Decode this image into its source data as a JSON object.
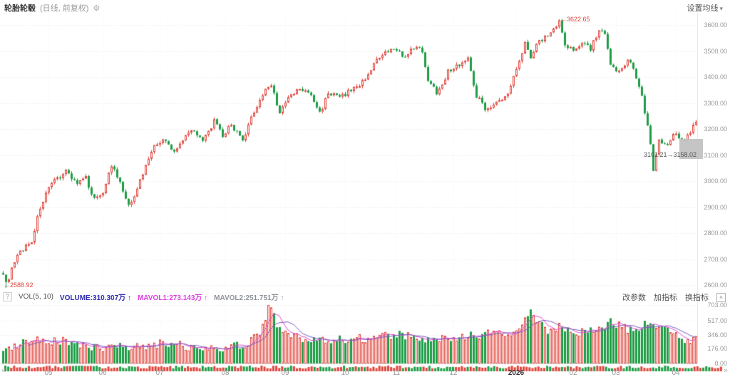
{
  "header": {
    "symbol": "轮胎轮毂",
    "mode": "(日线, 前复权)",
    "gear_icon": "⚙",
    "settings_label": "设置均线",
    "caret_icon": "▾"
  },
  "indicator_bar": {
    "help_icon": "?",
    "name": "VOL(5, 10)",
    "volume_label": "VOLUME:310.307万",
    "mavol1_label": "MAVOL1:273.143万",
    "mavol2_label": "MAVOL2:251.751万",
    "arrow_up": "↑",
    "buttons": [
      "改参数",
      "加指标",
      "换指标"
    ],
    "close_icon": "×"
  },
  "navigator": {
    "left_icon": "«",
    "right_icon": "»"
  },
  "colors": {
    "up": "#e0443c",
    "up_fill": "#fdf1f0",
    "down": "#1f9d46",
    "grid": "#e8e8e8",
    "grid_v": "#f0f0f0",
    "axis_text": "#999999",
    "mavol1_line": "#e14ad7",
    "mavol2_line": "#7d5bbe",
    "boundary": "#e3e3e3",
    "zero_line": "#dddddd"
  },
  "chart_data": {
    "type": "candlestick+volume",
    "title": "轮胎轮毂",
    "candle_count": 244,
    "price_axis": {
      "ticks": [
        "3600.00",
        "3500.00",
        "3400.00",
        "3300.00",
        "3200.00",
        "3100.00",
        "3000.00",
        "2900.00",
        "2800.00",
        "2700.00",
        "2600.00"
      ],
      "ylim": [
        2560,
        3640
      ]
    },
    "volume_axis": {
      "ticks": [
        "703.00",
        "517.00",
        "346.00",
        "176.00",
        "0.00"
      ],
      "unit": "万",
      "ylim": [
        0,
        703
      ]
    },
    "x_labels": [
      {
        "label": "05",
        "i": 16
      },
      {
        "label": "06",
        "i": 35
      },
      {
        "label": "07",
        "i": 55
      },
      {
        "label": "08",
        "i": 78
      },
      {
        "label": "09",
        "i": 99
      },
      {
        "label": "10",
        "i": 120
      },
      {
        "label": "11",
        "i": 138
      },
      {
        "label": "12",
        "i": 158
      },
      {
        "label": "2026",
        "i": 180
      },
      {
        "label": "02",
        "i": 200
      },
      {
        "label": "03",
        "i": 215
      },
      {
        "label": "04",
        "i": 236
      }
    ],
    "close_anchors": [
      [
        0,
        2650
      ],
      [
        1,
        2602
      ],
      [
        3,
        2660
      ],
      [
        6,
        2730
      ],
      [
        10,
        2770
      ],
      [
        13,
        2900
      ],
      [
        15,
        2950
      ],
      [
        18,
        3000
      ],
      [
        22,
        3040
      ],
      [
        26,
        2990
      ],
      [
        29,
        3010
      ],
      [
        32,
        2930
      ],
      [
        35,
        2960
      ],
      [
        38,
        3060
      ],
      [
        41,
        2990
      ],
      [
        44,
        2900
      ],
      [
        48,
        3000
      ],
      [
        52,
        3120
      ],
      [
        56,
        3160
      ],
      [
        60,
        3110
      ],
      [
        64,
        3180
      ],
      [
        67,
        3200
      ],
      [
        70,
        3150
      ],
      [
        74,
        3230
      ],
      [
        77,
        3170
      ],
      [
        80,
        3220
      ],
      [
        84,
        3150
      ],
      [
        88,
        3270
      ],
      [
        92,
        3350
      ],
      [
        94,
        3373
      ],
      [
        97,
        3260
      ],
      [
        100,
        3320
      ],
      [
        104,
        3355
      ],
      [
        108,
        3330
      ],
      [
        111,
        3260
      ],
      [
        114,
        3340
      ],
      [
        118,
        3320
      ],
      [
        122,
        3350
      ],
      [
        126,
        3380
      ],
      [
        130,
        3450
      ],
      [
        134,
        3490
      ],
      [
        138,
        3510
      ],
      [
        141,
        3470
      ],
      [
        144,
        3515
      ],
      [
        147,
        3500
      ],
      [
        149,
        3390
      ],
      [
        152,
        3340
      ],
      [
        156,
        3420
      ],
      [
        160,
        3450
      ],
      [
        163,
        3470
      ],
      [
        166,
        3330
      ],
      [
        169,
        3280
      ],
      [
        173,
        3300
      ],
      [
        177,
        3330
      ],
      [
        180,
        3440
      ],
      [
        183,
        3530
      ],
      [
        185,
        3480
      ],
      [
        188,
        3540
      ],
      [
        191,
        3560
      ],
      [
        194,
        3600
      ],
      [
        195,
        3615
      ],
      [
        197,
        3520
      ],
      [
        200,
        3500
      ],
      [
        203,
        3540
      ],
      [
        206,
        3510
      ],
      [
        209,
        3580
      ],
      [
        211,
        3560
      ],
      [
        213,
        3440
      ],
      [
        216,
        3420
      ],
      [
        219,
        3470
      ],
      [
        221,
        3430
      ],
      [
        224,
        3330
      ],
      [
        227,
        3150
      ],
      [
        228,
        3045
      ],
      [
        230,
        3160
      ],
      [
        233,
        3140
      ],
      [
        236,
        3190
      ],
      [
        238,
        3150
      ],
      [
        240,
        3180
      ],
      [
        243,
        3225
      ]
    ],
    "volume_anchors": [
      [
        0,
        180
      ],
      [
        5,
        220
      ],
      [
        13,
        300
      ],
      [
        22,
        260
      ],
      [
        32,
        180
      ],
      [
        44,
        200
      ],
      [
        56,
        240
      ],
      [
        70,
        190
      ],
      [
        84,
        210
      ],
      [
        90,
        350
      ],
      [
        93,
        690
      ],
      [
        97,
        420
      ],
      [
        104,
        300
      ],
      [
        114,
        280
      ],
      [
        126,
        300
      ],
      [
        134,
        350
      ],
      [
        144,
        330
      ],
      [
        152,
        280
      ],
      [
        160,
        320
      ],
      [
        169,
        350
      ],
      [
        180,
        380
      ],
      [
        185,
        600
      ],
      [
        191,
        400
      ],
      [
        195,
        450
      ],
      [
        203,
        380
      ],
      [
        209,
        420
      ],
      [
        213,
        500
      ],
      [
        221,
        380
      ],
      [
        227,
        520
      ],
      [
        230,
        450
      ],
      [
        236,
        350
      ],
      [
        240,
        280
      ],
      [
        243,
        310
      ]
    ],
    "volume_spikes": {
      "93": 703,
      "185": 650
    },
    "price_jitter": 10,
    "wick": 9,
    "volume_jitter": 55,
    "annotations": {
      "high": {
        "text": "←3622.65",
        "i": 195,
        "price": 3622.65
      },
      "low": {
        "text": "←2588.92",
        "i": 1,
        "price": 2588.92
      },
      "range": {
        "text": "3101.21→3158.02"
      }
    }
  }
}
